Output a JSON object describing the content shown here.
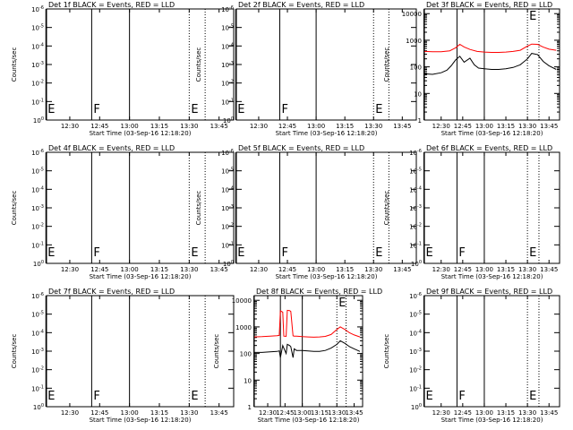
{
  "chart_data": [
    {
      "type": "line",
      "title": "Det 1f BLACK = Events, RED = LLD",
      "ylabel": "Counts/sec",
      "xlabel": "Start Time (03-Sep-16 12:18:20)",
      "xticks": [
        "12:30",
        "12:45",
        "13:00",
        "13:15",
        "13:30",
        "13:45"
      ],
      "yscale": "log",
      "ytick_labels": [
        "10^0",
        "10^-1",
        "10^-2",
        "10^-3",
        "10^-4",
        "10^-5",
        "10^-6"
      ],
      "markers": [
        {
          "time": "12:18",
          "label": "E",
          "style": "solid"
        },
        {
          "time": "12:41",
          "label": "F",
          "style": "solid"
        },
        {
          "time": "13:00",
          "label": "",
          "style": "solid"
        },
        {
          "time": "13:30",
          "label": "E",
          "style": "dotted"
        },
        {
          "time": "13:38",
          "label": "",
          "style": "dotted"
        }
      ],
      "series": []
    },
    {
      "type": "line",
      "title": "Det 2f BLACK = Events, RED = LLD",
      "ylabel": "Counts/sec",
      "xlabel": "Start Time (03-Sep-16 12:18:20)",
      "xticks": [
        "12:30",
        "12:45",
        "13:00",
        "13:15",
        "13:30",
        "13:45"
      ],
      "yscale": "log",
      "ytick_labels": [
        "10^0",
        "10^-1",
        "10^-2",
        "10^-3",
        "10^-4",
        "10^-5",
        "10^-6"
      ],
      "markers": [
        {
          "time": "12:18",
          "label": "E",
          "style": "solid"
        },
        {
          "time": "12:41",
          "label": "F",
          "style": "solid"
        },
        {
          "time": "13:00",
          "label": "",
          "style": "solid"
        },
        {
          "time": "13:30",
          "label": "E",
          "style": "dotted"
        },
        {
          "time": "13:38",
          "label": "",
          "style": "dotted"
        }
      ],
      "series": []
    },
    {
      "type": "line",
      "title": "Det 3f BLACK = Events, RED = LLD",
      "ylabel": "Counts/sec",
      "xlabel": "Start Time (03-Sep-16 12:18:20)",
      "xticks": [
        "12:30",
        "12:45",
        "13:00",
        "13:15",
        "13:30",
        "13:45"
      ],
      "yscale": "log",
      "ytick_labels": [
        "1",
        "10",
        "100",
        "1000",
        "10000"
      ],
      "ylim": [
        1,
        15000
      ],
      "markers": [
        {
          "time": "12:18",
          "label": "",
          "style": "solid"
        },
        {
          "time": "12:41",
          "label": "",
          "style": "solid"
        },
        {
          "time": "13:00",
          "label": "",
          "style": "solid"
        },
        {
          "time": "13:30",
          "label": "E",
          "style": "dotted"
        },
        {
          "time": "13:38",
          "label": "",
          "style": "dotted"
        }
      ],
      "series": [
        {
          "color": "#ff0000",
          "x": [
            "12:18",
            "12:24",
            "12:30",
            "12:36",
            "12:40",
            "12:43",
            "12:46",
            "12:50",
            "12:55",
            "13:00",
            "13:05",
            "13:10",
            "13:15",
            "13:20",
            "13:25",
            "13:30",
            "13:33",
            "13:37",
            "13:41",
            "13:45",
            "13:50"
          ],
          "values": [
            380,
            370,
            370,
            400,
            520,
            700,
            560,
            450,
            380,
            360,
            350,
            350,
            360,
            380,
            420,
            600,
            720,
            700,
            550,
            460,
            420
          ]
        },
        {
          "color": "#000000",
          "x": [
            "12:18",
            "12:24",
            "12:30",
            "12:34",
            "12:37",
            "12:40",
            "12:43",
            "12:46",
            "12:50",
            "12:53",
            "12:56",
            "13:00",
            "13:05",
            "13:10",
            "13:15",
            "13:20",
            "13:25",
            "13:30",
            "13:33",
            "13:37",
            "13:41",
            "13:45",
            "13:50"
          ],
          "values": [
            55,
            52,
            60,
            75,
            110,
            180,
            250,
            150,
            210,
            120,
            90,
            85,
            80,
            80,
            85,
            95,
            120,
            200,
            320,
            290,
            160,
            110,
            80
          ]
        }
      ]
    },
    {
      "type": "line",
      "title": "Det 4f BLACK = Events, RED = LLD",
      "ylabel": "Counts/sec",
      "xlabel": "Start Time (03-Sep-16 12:18:20)",
      "xticks": [
        "12:30",
        "12:45",
        "13:00",
        "13:15",
        "13:30",
        "13:45"
      ],
      "yscale": "log",
      "ytick_labels": [
        "10^0",
        "10^-1",
        "10^-2",
        "10^-3",
        "10^-4",
        "10^-5",
        "10^-6"
      ],
      "markers": [
        {
          "time": "12:18",
          "label": "E",
          "style": "solid"
        },
        {
          "time": "12:41",
          "label": "F",
          "style": "solid"
        },
        {
          "time": "13:00",
          "label": "",
          "style": "solid"
        },
        {
          "time": "13:30",
          "label": "E",
          "style": "dotted"
        },
        {
          "time": "13:38",
          "label": "",
          "style": "dotted"
        }
      ],
      "series": []
    },
    {
      "type": "line",
      "title": "Det 5f BLACK = Events, RED = LLD",
      "ylabel": "Counts/sec",
      "xlabel": "Start Time (03-Sep-16 12:18:20)",
      "xticks": [
        "12:30",
        "12:45",
        "13:00",
        "13:15",
        "13:30",
        "13:45"
      ],
      "yscale": "log",
      "ytick_labels": [
        "10^0",
        "10^-1",
        "10^-2",
        "10^-3",
        "10^-4",
        "10^-5",
        "10^-6"
      ],
      "markers": [
        {
          "time": "12:18",
          "label": "E",
          "style": "solid"
        },
        {
          "time": "12:41",
          "label": "F",
          "style": "solid"
        },
        {
          "time": "13:00",
          "label": "",
          "style": "solid"
        },
        {
          "time": "13:30",
          "label": "E",
          "style": "dotted"
        },
        {
          "time": "13:38",
          "label": "",
          "style": "dotted"
        }
      ],
      "series": []
    },
    {
      "type": "line",
      "title": "Det 6f BLACK = Events, RED = LLD",
      "ylabel": "Counts/sec",
      "xlabel": "Start Time (03-Sep-16 12:18:20)",
      "xticks": [
        "12:30",
        "12:45",
        "13:00",
        "13:15",
        "13:30",
        "13:45"
      ],
      "yscale": "log",
      "ytick_labels": [
        "10^0",
        "10^-1",
        "10^-2",
        "10^-3",
        "10^-4",
        "10^-5",
        "10^-6"
      ],
      "markers": [
        {
          "time": "12:18",
          "label": "E",
          "style": "solid"
        },
        {
          "time": "12:41",
          "label": "F",
          "style": "solid"
        },
        {
          "time": "13:00",
          "label": "",
          "style": "solid"
        },
        {
          "time": "13:30",
          "label": "E",
          "style": "dotted"
        },
        {
          "time": "13:38",
          "label": "",
          "style": "dotted"
        }
      ],
      "series": []
    },
    {
      "type": "line",
      "title": "Det 7f BLACK = Events, RED = LLD",
      "ylabel": "Counts/sec",
      "xlabel": "Start Time (03-Sep-16 12:18:20)",
      "xticks": [
        "12:30",
        "12:45",
        "13:00",
        "13:15",
        "13:30",
        "13:45"
      ],
      "yscale": "log",
      "ytick_labels": [
        "10^0",
        "10^-1",
        "10^-2",
        "10^-3",
        "10^-4",
        "10^-5",
        "10^-6"
      ],
      "markers": [
        {
          "time": "12:18",
          "label": "E",
          "style": "solid"
        },
        {
          "time": "12:41",
          "label": "F",
          "style": "solid"
        },
        {
          "time": "13:00",
          "label": "",
          "style": "solid"
        },
        {
          "time": "13:30",
          "label": "E",
          "style": "dotted"
        },
        {
          "time": "13:38",
          "label": "",
          "style": "dotted"
        }
      ],
      "series": []
    },
    {
      "type": "line",
      "title": "Det 8f BLACK = Events, RED = LLD",
      "ylabel": "Counts/sec",
      "xlabel": "Start Time (03-Sep-16 12:18:20)",
      "xticks": [
        "12:30",
        "12:45",
        "13:00",
        "13:15",
        "13:30",
        "13:45"
      ],
      "yscale": "log",
      "ytick_labels": [
        "1",
        "10",
        "100",
        "1000",
        "10000"
      ],
      "ylim": [
        1,
        15000
      ],
      "markers": [
        {
          "time": "12:18",
          "label": "",
          "style": "solid"
        },
        {
          "time": "12:41",
          "label": "",
          "style": "solid"
        },
        {
          "time": "13:00",
          "label": "",
          "style": "solid"
        },
        {
          "time": "13:30",
          "label": "E",
          "style": "dotted"
        },
        {
          "time": "13:38",
          "label": "",
          "style": "dotted"
        }
      ],
      "series": [
        {
          "color": "#ff0000",
          "x": [
            "12:18",
            "12:25",
            "12:32",
            "12:38",
            "12:40",
            "12:41",
            "12:43",
            "12:44",
            "12:46",
            "12:47",
            "12:49",
            "12:50",
            "12:52",
            "12:53",
            "12:55",
            "13:00",
            "13:05",
            "13:10",
            "13:15",
            "13:20",
            "13:25",
            "13:30",
            "13:33",
            "13:37",
            "13:41",
            "13:45",
            "13:50"
          ],
          "values": [
            420,
            430,
            450,
            470,
            480,
            4000,
            3600,
            450,
            440,
            4200,
            4100,
            3800,
            460,
            450,
            450,
            430,
            420,
            410,
            420,
            440,
            520,
            800,
            1000,
            800,
            600,
            500,
            420
          ]
        },
        {
          "color": "#000000",
          "x": [
            "12:18",
            "12:25",
            "12:32",
            "12:38",
            "12:40",
            "12:41",
            "12:43",
            "12:44",
            "12:46",
            "12:47",
            "12:49",
            "12:50",
            "12:52",
            "12:53",
            "12:55",
            "13:00",
            "13:05",
            "13:10",
            "13:15",
            "13:20",
            "13:25",
            "13:30",
            "13:33",
            "13:37",
            "13:41",
            "13:45",
            "13:50"
          ],
          "values": [
            110,
            110,
            115,
            120,
            125,
            70,
            200,
            160,
            100,
            220,
            200,
            180,
            70,
            150,
            130,
            130,
            125,
            120,
            120,
            130,
            160,
            220,
            300,
            240,
            180,
            150,
            120
          ]
        }
      ]
    },
    {
      "type": "line",
      "title": "Det 9f BLACK = Events, RED = LLD",
      "ylabel": "Counts/sec",
      "xlabel": "Start Time (03-Sep-16 12:18:20)",
      "xticks": [
        "12:30",
        "12:45",
        "13:00",
        "13:15",
        "13:30",
        "13:45"
      ],
      "yscale": "log",
      "ytick_labels": [
        "10^0",
        "10^-1",
        "10^-2",
        "10^-3",
        "10^-4",
        "10^-5",
        "10^-6"
      ],
      "markers": [
        {
          "time": "12:18",
          "label": "E",
          "style": "solid"
        },
        {
          "time": "12:41",
          "label": "F",
          "style": "solid"
        },
        {
          "time": "13:00",
          "label": "",
          "style": "solid"
        },
        {
          "time": "13:30",
          "label": "E",
          "style": "dotted"
        },
        {
          "time": "13:38",
          "label": "",
          "style": "dotted"
        }
      ],
      "series": []
    }
  ]
}
